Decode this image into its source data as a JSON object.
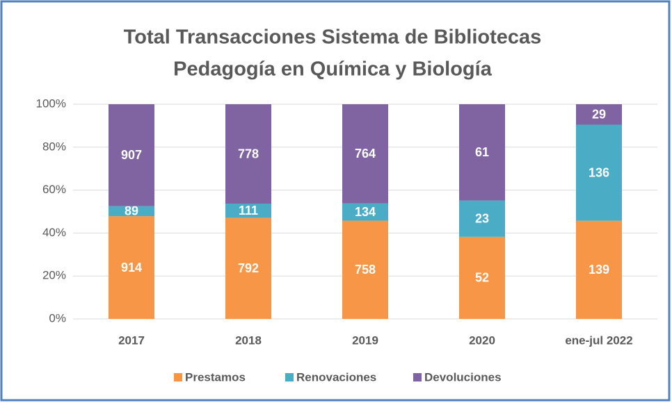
{
  "chart_data": {
    "type": "bar",
    "stacked": "percent",
    "title": [
      "Total Transacciones Sistema de Bibliotecas",
      "Pedagogía en Química y Biología"
    ],
    "categories": [
      "2017",
      "2018",
      "2019",
      "2020",
      "ene-jul 2022"
    ],
    "series": [
      {
        "name": "Prestamos",
        "color": "#f79646",
        "values": [
          914,
          792,
          758,
          52,
          139
        ]
      },
      {
        "name": "Renovaciones",
        "color": "#4bacc6",
        "values": [
          89,
          111,
          134,
          23,
          136
        ]
      },
      {
        "name": "Devoluciones",
        "color": "#8064a2",
        "values": [
          907,
          778,
          764,
          61,
          29
        ]
      }
    ],
    "ylim": [
      0,
      100
    ],
    "yticks": [
      {
        "value": 0,
        "label": "0%"
      },
      {
        "value": 20,
        "label": "20%"
      },
      {
        "value": 40,
        "label": "40%"
      },
      {
        "value": 60,
        "label": "60%"
      },
      {
        "value": 80,
        "label": "80%"
      },
      {
        "value": 100,
        "label": "100%"
      }
    ],
    "grid": true,
    "legend": "bottom"
  }
}
